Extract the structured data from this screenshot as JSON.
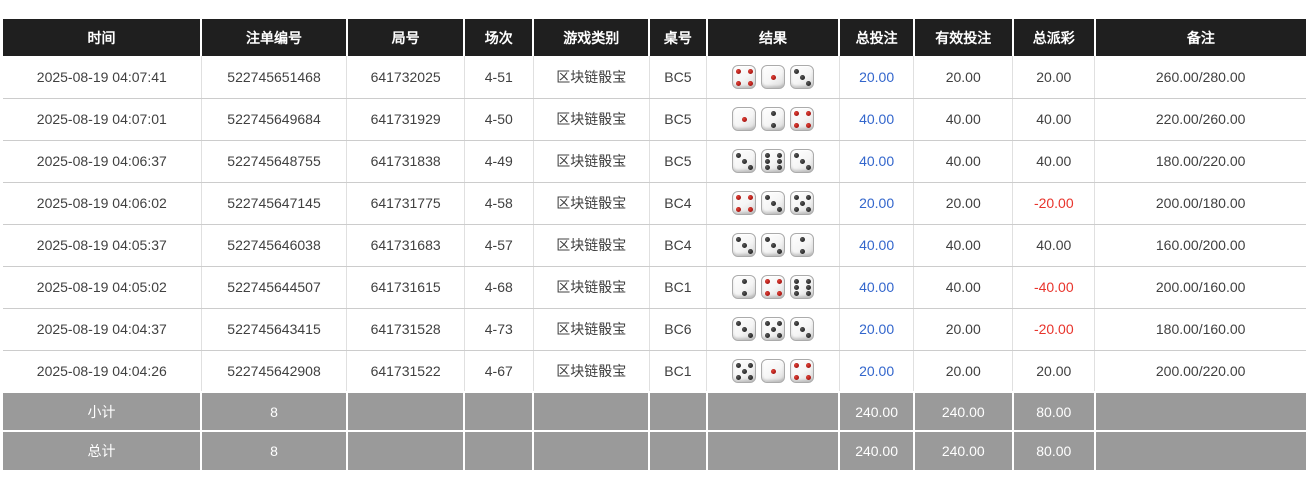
{
  "colors": {
    "header_bg": "#1f1f1f",
    "footer_bg": "#9a9a9a",
    "link_blue": "#3366cc",
    "negative_red": "#e8342c"
  },
  "table": {
    "headers": [
      "时间",
      "注单编号",
      "局号",
      "场次",
      "游戏类别",
      "桌号",
      "结果",
      "总投注",
      "有效投注",
      "总派彩",
      "备注"
    ],
    "rows": [
      {
        "time": "2025-08-19 04:07:41",
        "bet_id": "522745651468",
        "round": "641732025",
        "session": "4-51",
        "game": "区块链骰宝",
        "table_no": "BC5",
        "dice": [
          4,
          1,
          3
        ],
        "total_bet": "20.00",
        "valid_bet": "20.00",
        "payout": "20.00",
        "remark": "260.00/280.00"
      },
      {
        "time": "2025-08-19 04:07:01",
        "bet_id": "522745649684",
        "round": "641731929",
        "session": "4-50",
        "game": "区块链骰宝",
        "table_no": "BC5",
        "dice": [
          1,
          2,
          4
        ],
        "total_bet": "40.00",
        "valid_bet": "40.00",
        "payout": "40.00",
        "remark": "220.00/260.00"
      },
      {
        "time": "2025-08-19 04:06:37",
        "bet_id": "522745648755",
        "round": "641731838",
        "session": "4-49",
        "game": "区块链骰宝",
        "table_no": "BC5",
        "dice": [
          3,
          6,
          3
        ],
        "total_bet": "40.00",
        "valid_bet": "40.00",
        "payout": "40.00",
        "remark": "180.00/220.00"
      },
      {
        "time": "2025-08-19 04:06:02",
        "bet_id": "522745647145",
        "round": "641731775",
        "session": "4-58",
        "game": "区块链骰宝",
        "table_no": "BC4",
        "dice": [
          4,
          3,
          5
        ],
        "total_bet": "20.00",
        "valid_bet": "20.00",
        "payout": "-20.00",
        "remark": "200.00/180.00"
      },
      {
        "time": "2025-08-19 04:05:37",
        "bet_id": "522745646038",
        "round": "641731683",
        "session": "4-57",
        "game": "区块链骰宝",
        "table_no": "BC4",
        "dice": [
          3,
          3,
          2
        ],
        "total_bet": "40.00",
        "valid_bet": "40.00",
        "payout": "40.00",
        "remark": "160.00/200.00"
      },
      {
        "time": "2025-08-19 04:05:02",
        "bet_id": "522745644507",
        "round": "641731615",
        "session": "4-68",
        "game": "区块链骰宝",
        "table_no": "BC1",
        "dice": [
          2,
          4,
          6
        ],
        "total_bet": "40.00",
        "valid_bet": "40.00",
        "payout": "-40.00",
        "remark": "200.00/160.00"
      },
      {
        "time": "2025-08-19 04:04:37",
        "bet_id": "522745643415",
        "round": "641731528",
        "session": "4-73",
        "game": "区块链骰宝",
        "table_no": "BC6",
        "dice": [
          3,
          5,
          3
        ],
        "total_bet": "20.00",
        "valid_bet": "20.00",
        "payout": "-20.00",
        "remark": "180.00/160.00"
      },
      {
        "time": "2025-08-19 04:04:26",
        "bet_id": "522745642908",
        "round": "641731522",
        "session": "4-67",
        "game": "区块链骰宝",
        "table_no": "BC1",
        "dice": [
          5,
          1,
          4
        ],
        "total_bet": "20.00",
        "valid_bet": "20.00",
        "payout": "20.00",
        "remark": "200.00/220.00"
      }
    ],
    "footer": [
      {
        "label": "小计",
        "count": "8",
        "total_bet": "240.00",
        "valid_bet": "240.00",
        "payout": "80.00"
      },
      {
        "label": "总计",
        "count": "8",
        "total_bet": "240.00",
        "valid_bet": "240.00",
        "payout": "80.00"
      }
    ]
  }
}
